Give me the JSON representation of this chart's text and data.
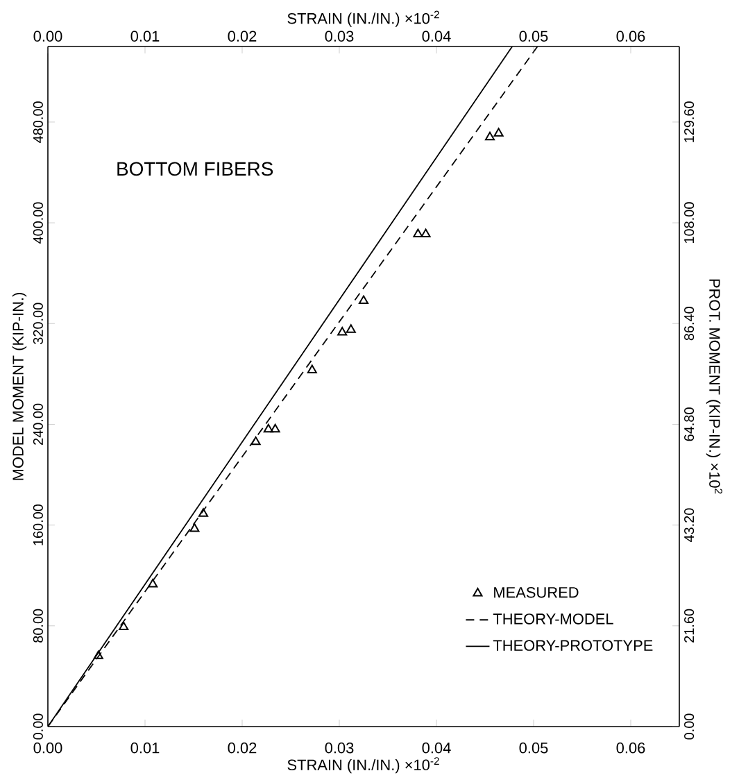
{
  "chart_data": {
    "type": "line",
    "xlabel": "STRAIN (IN./IN.) ×10$^{-2}$",
    "x2label": "STRAIN (IN./IN.) ×10$^{-2}$",
    "ylabel": "MODEL MOMENT (KIP-IN.)",
    "y2label": "PROT. MOMENT (KIP-IN.) ×10$^{2}$",
    "annotations": [
      "BOTTOM FIBERS"
    ],
    "xlim": [
      0,
      0.065
    ],
    "x2lim": [
      0,
      0.065
    ],
    "ylim": [
      0,
      540
    ],
    "y2lim": [
      0,
      145.8
    ],
    "xticks": [
      {
        "value": 0,
        "label": "0.00"
      },
      {
        "value": 0.01,
        "label": "0.01"
      },
      {
        "value": 0.02,
        "label": "0.02"
      },
      {
        "value": 0.03,
        "label": "0.03"
      },
      {
        "value": 0.04,
        "label": "0.04"
      },
      {
        "value": 0.05,
        "label": "0.05"
      },
      {
        "value": 0.06,
        "label": "0.06"
      }
    ],
    "x2ticks": [
      {
        "value": 0,
        "label": "0.00"
      },
      {
        "value": 0.01,
        "label": "0.01"
      },
      {
        "value": 0.02,
        "label": "0.02"
      },
      {
        "value": 0.03,
        "label": "0.03"
      },
      {
        "value": 0.04,
        "label": "0.04"
      },
      {
        "value": 0.05,
        "label": "0.05"
      },
      {
        "value": 0.06,
        "label": "0.06"
      }
    ],
    "yticks": [
      {
        "value": 0,
        "label": "0.00"
      },
      {
        "value": 80,
        "label": "80.00"
      },
      {
        "value": 160,
        "label": "160.00"
      },
      {
        "value": 240,
        "label": "240.00"
      },
      {
        "value": 320,
        "label": "320.00"
      },
      {
        "value": 400,
        "label": "400.00"
      },
      {
        "value": 480,
        "label": "480.00"
      }
    ],
    "y2ticks": [
      {
        "value": 0,
        "label": "0.00"
      },
      {
        "value": 21.6,
        "label": "21.60"
      },
      {
        "value": 43.2,
        "label": "43.20"
      },
      {
        "value": 64.8,
        "label": "64.80"
      },
      {
        "value": 86.4,
        "label": "86.40"
      },
      {
        "value": 108,
        "label": "108.00"
      },
      {
        "value": 129.6,
        "label": "129.60"
      }
    ],
    "legend": "bottom right",
    "series": [
      {
        "name": "MEASURED",
        "type": "scatter",
        "marker": "triangle",
        "color": "#000000",
        "x": [
          0.0052,
          0.0078,
          0.0108,
          0.0151,
          0.016,
          0.0214,
          0.0227,
          0.0234,
          0.0272,
          0.0303,
          0.0312,
          0.0325,
          0.0381,
          0.0389,
          0.0455,
          0.0464
        ],
        "values": [
          56,
          79,
          113,
          157,
          169,
          226,
          236,
          236,
          283,
          313,
          315,
          338,
          391,
          391,
          468,
          471
        ]
      },
      {
        "name": "THEORY-MODEL",
        "type": "line",
        "line_style": "dashed",
        "color": "#000000",
        "x": [
          0,
          0.0504
        ],
        "values": [
          0,
          540
        ]
      },
      {
        "name": "THEORY-PROTOTYPE",
        "type": "line",
        "line_style": "solid",
        "color": "#000000",
        "x": [
          0,
          0.0478
        ],
        "values": [
          0,
          540
        ]
      }
    ]
  }
}
